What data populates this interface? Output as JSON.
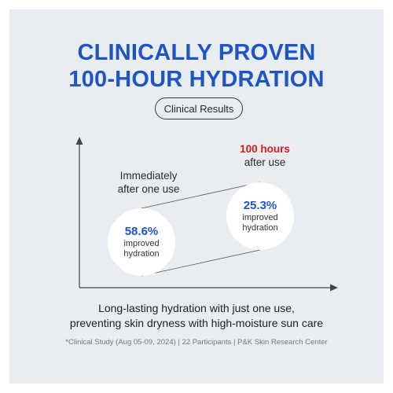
{
  "headline": {
    "line1": "CLINICALLY PROVEN",
    "line2": "100-HOUR HYDRATION"
  },
  "badge": "Clinical Results",
  "graph": {
    "left_label_line1": "Immediately",
    "left_label_line2": "after one use",
    "right_label_highlight": "100 hours",
    "right_label_line2": "after use",
    "left_circle": {
      "value": "58.6%",
      "text1": "improved",
      "text2": "hydration"
    },
    "right_circle": {
      "value": "25.3%",
      "text1": "improved",
      "text2": "hydration"
    }
  },
  "description": {
    "line1": "Long-lasting hydration with just one use,",
    "line2": "preventing skin dryness with high-moisture sun care"
  },
  "footnote": "*Clinical Study (Aug 05-09, 2024) | 22 Participants | P&K Skin Research Center",
  "colors": {
    "accent_blue": "#1d55c4",
    "highlight_red": "#d11f24",
    "panel_bg": "#e9ecf0"
  }
}
